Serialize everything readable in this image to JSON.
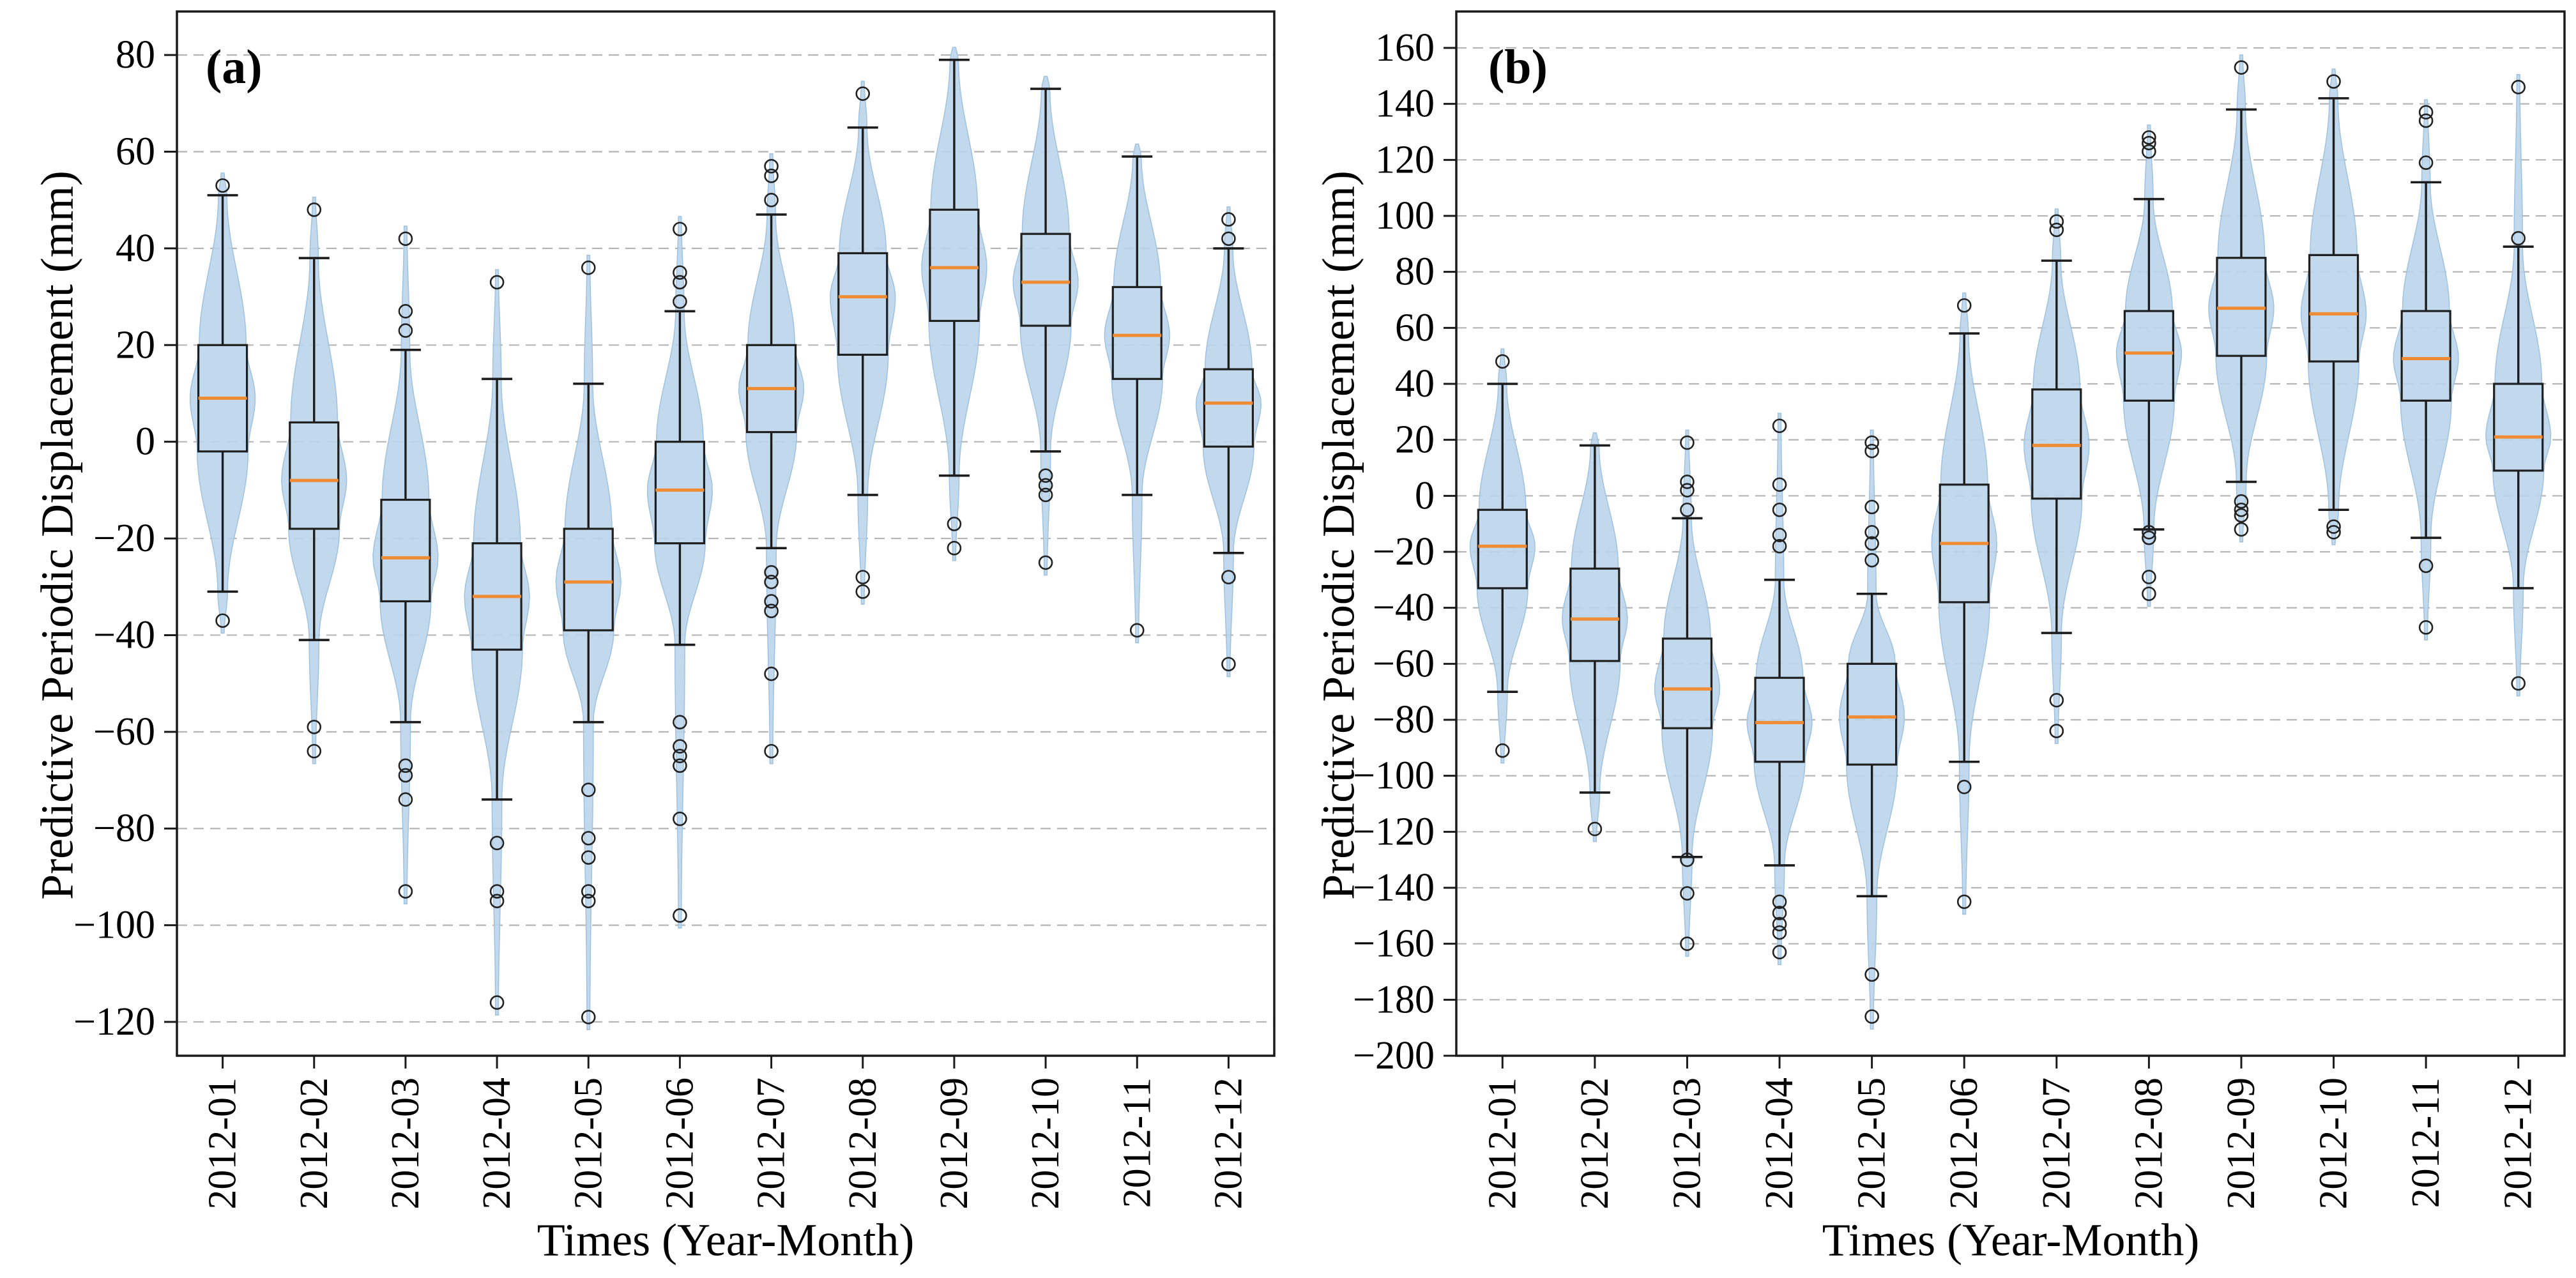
{
  "figure": {
    "background": "#ffffff",
    "panel_a_label": "(a)",
    "panel_b_label": "(b)"
  },
  "style": {
    "violin_fill": "#b9d3ea",
    "violin_edge": "#9fc2de",
    "box_edge": "#1f1f1f",
    "median_color": "#ef8b33",
    "whisker_color": "#1c1c1c",
    "outlier_color": "#222222",
    "grid_color": "#b5b5b5",
    "spine_color": "#1a1a1a",
    "text_color": "#000000"
  },
  "chart_data": [
    {
      "type": "violin-box",
      "label": "(a)",
      "xlabel": "Times (Year-Month)",
      "ylabel": "Predictive Periodic Displacement (mm)",
      "ylim": [
        -127,
        89
      ],
      "yticks": [
        80,
        60,
        40,
        20,
        0,
        -20,
        -40,
        -60,
        -80,
        -100,
        -120
      ],
      "categories": [
        "2012-01",
        "2012-02",
        "2012-03",
        "2012-04",
        "2012-05",
        "2012-06",
        "2012-07",
        "2012-08",
        "2012-09",
        "2012-10",
        "2012-11",
        "2012-12"
      ],
      "series": [
        {
          "month": "2012-01",
          "q1": -2,
          "median": 9,
          "q3": 20,
          "whisker_low": -31,
          "whisker_high": 51,
          "outliers": [
            53,
            -37
          ]
        },
        {
          "month": "2012-02",
          "q1": -18,
          "median": -8,
          "q3": 4,
          "whisker_low": -41,
          "whisker_high": 38,
          "outliers": [
            48,
            -59,
            -64
          ]
        },
        {
          "month": "2012-03",
          "q1": -33,
          "median": -24,
          "q3": -12,
          "whisker_low": -58,
          "whisker_high": 19,
          "outliers": [
            42,
            27,
            23,
            -67,
            -69,
            -74,
            -93
          ]
        },
        {
          "month": "2012-04",
          "q1": -43,
          "median": -32,
          "q3": -21,
          "whisker_low": -74,
          "whisker_high": 13,
          "outliers": [
            33,
            -83,
            -93,
            -95,
            -116
          ]
        },
        {
          "month": "2012-05",
          "q1": -39,
          "median": -29,
          "q3": -18,
          "whisker_low": -58,
          "whisker_high": 12,
          "outliers": [
            36,
            -72,
            -82,
            -86,
            -93,
            -95,
            -119
          ]
        },
        {
          "month": "2012-06",
          "q1": -21,
          "median": -10,
          "q3": 0,
          "whisker_low": -42,
          "whisker_high": 27,
          "outliers": [
            44,
            35,
            33,
            29,
            -58,
            -63,
            -65,
            -67,
            -78,
            -98
          ]
        },
        {
          "month": "2012-07",
          "q1": 2,
          "median": 11,
          "q3": 20,
          "whisker_low": -22,
          "whisker_high": 47,
          "outliers": [
            57,
            55,
            50,
            -27,
            -29,
            -33,
            -35,
            -48,
            -64
          ]
        },
        {
          "month": "2012-08",
          "q1": 18,
          "median": 30,
          "q3": 39,
          "whisker_low": -11,
          "whisker_high": 65,
          "outliers": [
            72,
            -28,
            -31
          ]
        },
        {
          "month": "2012-09",
          "q1": 25,
          "median": 36,
          "q3": 48,
          "whisker_low": -7,
          "whisker_high": 79,
          "outliers": [
            -17,
            -22
          ]
        },
        {
          "month": "2012-10",
          "q1": 24,
          "median": 33,
          "q3": 43,
          "whisker_low": -2,
          "whisker_high": 73,
          "outliers": [
            -7,
            -9,
            -11,
            -25
          ]
        },
        {
          "month": "2012-11",
          "q1": 13,
          "median": 22,
          "q3": 32,
          "whisker_low": -11,
          "whisker_high": 59,
          "outliers": [
            -39
          ]
        },
        {
          "month": "2012-12",
          "q1": -1,
          "median": 8,
          "q3": 15,
          "whisker_low": -23,
          "whisker_high": 40,
          "outliers": [
            46,
            42,
            -28,
            -46
          ]
        }
      ]
    },
    {
      "type": "violin-box",
      "label": "(b)",
      "xlabel": "Times (Year-Month)",
      "ylabel": "Predictive Periodic Displacement (mm)",
      "ylim": [
        -200,
        173
      ],
      "yticks": [
        160,
        140,
        120,
        100,
        80,
        60,
        40,
        20,
        0,
        -20,
        -40,
        -60,
        -80,
        -100,
        -120,
        -140,
        -160,
        -180,
        -200
      ],
      "categories": [
        "2012-01",
        "2012-02",
        "2012-03",
        "2012-04",
        "2012-05",
        "2012-06",
        "2012-07",
        "2012-08",
        "2012-09",
        "2012-10",
        "2012-11",
        "2012-12"
      ],
      "series": [
        {
          "month": "2012-01",
          "q1": -33,
          "median": -18,
          "q3": -5,
          "whisker_low": -70,
          "whisker_high": 40,
          "outliers": [
            48,
            -91
          ]
        },
        {
          "month": "2012-02",
          "q1": -59,
          "median": -44,
          "q3": -26,
          "whisker_low": -106,
          "whisker_high": 18,
          "outliers": [
            -119
          ]
        },
        {
          "month": "2012-03",
          "q1": -83,
          "median": -69,
          "q3": -51,
          "whisker_low": -129,
          "whisker_high": -8,
          "outliers": [
            19,
            5,
            2,
            -5,
            -130,
            -142,
            -160
          ]
        },
        {
          "month": "2012-04",
          "q1": -95,
          "median": -81,
          "q3": -65,
          "whisker_low": -132,
          "whisker_high": -30,
          "outliers": [
            25,
            4,
            -5,
            -14,
            -18,
            -145,
            -149,
            -153,
            -156,
            -163
          ]
        },
        {
          "month": "2012-05",
          "q1": -96,
          "median": -79,
          "q3": -60,
          "whisker_low": -143,
          "whisker_high": -35,
          "outliers": [
            19,
            16,
            -4,
            -13,
            -17,
            -23,
            -171,
            -186
          ]
        },
        {
          "month": "2012-06",
          "q1": -38,
          "median": -17,
          "q3": 4,
          "whisker_low": -95,
          "whisker_high": 58,
          "outliers": [
            68,
            -104,
            -145
          ]
        },
        {
          "month": "2012-07",
          "q1": -1,
          "median": 18,
          "q3": 38,
          "whisker_low": -49,
          "whisker_high": 84,
          "outliers": [
            98,
            95,
            -73,
            -84
          ]
        },
        {
          "month": "2012-08",
          "q1": 34,
          "median": 51,
          "q3": 66,
          "whisker_low": -12,
          "whisker_high": 106,
          "outliers": [
            128,
            126,
            123,
            -13,
            -15,
            -29,
            -35
          ]
        },
        {
          "month": "2012-09",
          "q1": 50,
          "median": 67,
          "q3": 85,
          "whisker_low": 5,
          "whisker_high": 138,
          "outliers": [
            153,
            -2,
            -5,
            -7,
            -12
          ]
        },
        {
          "month": "2012-10",
          "q1": 48,
          "median": 65,
          "q3": 86,
          "whisker_low": -5,
          "whisker_high": 142,
          "outliers": [
            148,
            -11,
            -13
          ]
        },
        {
          "month": "2012-11",
          "q1": 34,
          "median": 49,
          "q3": 66,
          "whisker_low": -15,
          "whisker_high": 112,
          "outliers": [
            137,
            134,
            119,
            -25,
            -47
          ]
        },
        {
          "month": "2012-12",
          "q1": 9,
          "median": 21,
          "q3": 40,
          "whisker_low": -33,
          "whisker_high": 89,
          "outliers": [
            146,
            92,
            -67
          ]
        }
      ]
    }
  ]
}
